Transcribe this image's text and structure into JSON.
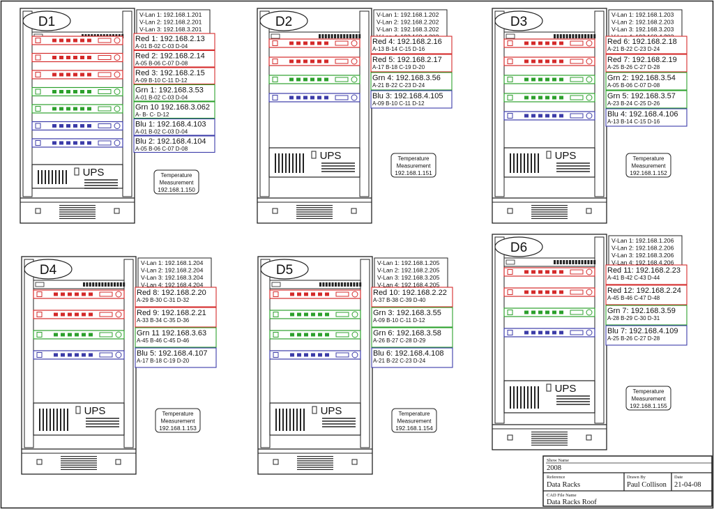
{
  "colors": {
    "red": "#d42a2a",
    "green": "#2ca02c",
    "blue": "#3b3ba8",
    "line": "#222222"
  },
  "racks": [
    {
      "name": "D1",
      "vlan": [
        "V-Lan 1: 192.168.1.201",
        "V-Lan 2: 192.168.2.201",
        "V-Lan 3: 192.168.3.201",
        "V-Lan 4: 192.168.4.201"
      ],
      "devices": [
        {
          "color": "red",
          "ip": "Red 1: 192.168.2.13",
          "ch": "A-01  B-02  C-03  D-04"
        },
        {
          "color": "red",
          "ip": "Red 2: 192.168.2.14",
          "ch": "A-05  B-06  C-07  D-08"
        },
        {
          "color": "red",
          "ip": "Red 3: 192.168.2.15",
          "ch": "A-09  B-10  C-11  D-12"
        },
        {
          "color": "green",
          "ip": "Grn 1: 192.168.3.53",
          "ch": "A-01  B-02  C-03  D-04"
        },
        {
          "color": "green",
          "ip": "Grn 10 192.168.3.062",
          "ch": "A-    B-    C-    D-12"
        },
        {
          "color": "blue",
          "ip": "Blu 1: 192.168.4.103",
          "ch": "A-01  B-02  C-03  D-04"
        },
        {
          "color": "blue",
          "ip": "Blu 2: 192.168.4.104",
          "ch": "A-05  B-06  C-07  D-08"
        }
      ],
      "ups": "UPS",
      "temp": [
        "Temperature",
        "Measurement",
        "192.168.1.150"
      ]
    },
    {
      "name": "D2",
      "vlan": [
        "V-Lan 1: 192.168.1.202",
        "V-Lan 2: 192.168.2.202",
        "V-Lan 3: 192.168.3.202",
        "V-Lan 4: 192.168.4.202"
      ],
      "devices": [
        {
          "color": "red",
          "ip": "Red 4: 192.168.2.16",
          "ch": "A-13  B-14  C-15  D-16"
        },
        {
          "color": "red",
          "ip": "Red 5: 192.168.2.17",
          "ch": "A-17  B-18  C-19  D-20"
        },
        {
          "color": "green",
          "ip": "Grn 4: 192.168.3.56",
          "ch": "A-21  B-22  C-23  D-24"
        },
        {
          "color": "blue",
          "ip": "Blu 3: 192.168.4.105",
          "ch": "A-09  B-10  C-11  D-12"
        }
      ],
      "ups": "UPS",
      "temp": [
        "Temperature",
        "Measurement",
        "192.168.1.151"
      ]
    },
    {
      "name": "D3",
      "vlan": [
        "V-Lan 1: 192.168.1.203",
        "V-Lan 2: 192.168.2.203",
        "V-Lan 3: 192.168.3.203",
        "V-Lan 4: 192.168.4.203"
      ],
      "devices": [
        {
          "color": "red",
          "ip": "Red 6: 192.168.2.18",
          "ch": "A-21  B-22  C-23  D-24"
        },
        {
          "color": "red",
          "ip": "Red 7: 192.168.2.19",
          "ch": "A-25  B-26  C-27  D-28"
        },
        {
          "color": "green",
          "ip": "Grn 2: 192.168.3.54",
          "ch": "A-05  B-06  C-07  D-08"
        },
        {
          "color": "green",
          "ip": "Grn 5: 192.168.3.57",
          "ch": "A-23  B-24  C-25  D-26"
        },
        {
          "color": "blue",
          "ip": "Blu 4: 192.168.4.106",
          "ch": "A-13  B-14  C-15  D-16"
        }
      ],
      "ups": "UPS",
      "temp": [
        "Temperature",
        "Measurement",
        "192.168.1.152"
      ]
    },
    {
      "name": "D4",
      "vlan": [
        "V-Lan 1: 192.168.1.204",
        "V-Lan 2: 192.168.2.204",
        "V-Lan 3: 192.168.3.204",
        "V-Lan 4: 192.168.4.204"
      ],
      "devices": [
        {
          "color": "red",
          "ip": "Red 8: 192.168.2.20",
          "ch": "A-29  B-30  C-31  D-32"
        },
        {
          "color": "red",
          "ip": "Red 9: 192.168.2.21",
          "ch": "A-33  B-34  C-35  D-36"
        },
        {
          "color": "green",
          "ip": "Grn 11 192.168.3.63",
          "ch": "A-45  B-46  C-45  D-46"
        },
        {
          "color": "blue",
          "ip": "Blu 5: 192.168.4.107",
          "ch": "A-17  B-18  C-19  D-20"
        }
      ],
      "ups": "UPS",
      "temp": [
        "Temperature",
        "Measurement",
        "192.168.1.153"
      ]
    },
    {
      "name": "D5",
      "vlan": [
        "V-Lan 1: 192.168.1.205",
        "V-Lan 2: 192.168.2.205",
        "V-Lan 3: 192.168.3.205",
        "V-Lan 4: 192.168.4.205"
      ],
      "devices": [
        {
          "color": "red",
          "ip": "Red 10: 192.168.2.22",
          "ch": "A-37  B-38  C-39  D-40"
        },
        {
          "color": "green",
          "ip": "Grn 3: 192.168.3.55",
          "ch": "A-09  B-10  C-11  D-12"
        },
        {
          "color": "green",
          "ip": "Grn 6: 192.168.3.58",
          "ch": "A-26  B-27  C-28  D-29"
        },
        {
          "color": "blue",
          "ip": "Blu 6: 192.168.4.108",
          "ch": "A-21  B-22  C-23  D-24"
        }
      ],
      "ups": "UPS",
      "temp": [
        "Temperature",
        "Measurement",
        "192.168.1.154"
      ]
    },
    {
      "name": "D6",
      "vlan": [
        "V-Lan 1: 192.168.1.206",
        "V-Lan 2: 192.168.2.206",
        "V-Lan 3: 192.168.3.206",
        "V-Lan 4: 192.168.4.206"
      ],
      "devices": [
        {
          "color": "red",
          "ip": "Red 11: 192.168.2.23",
          "ch": "A-41  B-42  C-43  D-44"
        },
        {
          "color": "red",
          "ip": "Red 12: 192.168.2.24",
          "ch": "A-45  B-46  C-47  D-48"
        },
        {
          "color": "green",
          "ip": "Grn 7: 192.168.3.59",
          "ch": "A-28  B-29  C-30  D-31"
        },
        {
          "color": "blue",
          "ip": "Blu 7: 192.168.4.109",
          "ch": "A-25  B-26  C-27  D-28"
        }
      ],
      "ups": "UPS",
      "temp": [
        "Temperature",
        "Measurement",
        "192.168.1.155"
      ]
    }
  ],
  "title_block": {
    "show_name_label": "Show Name",
    "show_name": "2008",
    "reference_label": "Reference",
    "reference": "Data Racks",
    "drawn_by_label": "Drawn By",
    "drawn_by": "Paul Collison",
    "date_label": "Date",
    "date": "21-04-08",
    "cad_file_label": "CAD File Name",
    "cad_file": "Data Racks Roof"
  }
}
